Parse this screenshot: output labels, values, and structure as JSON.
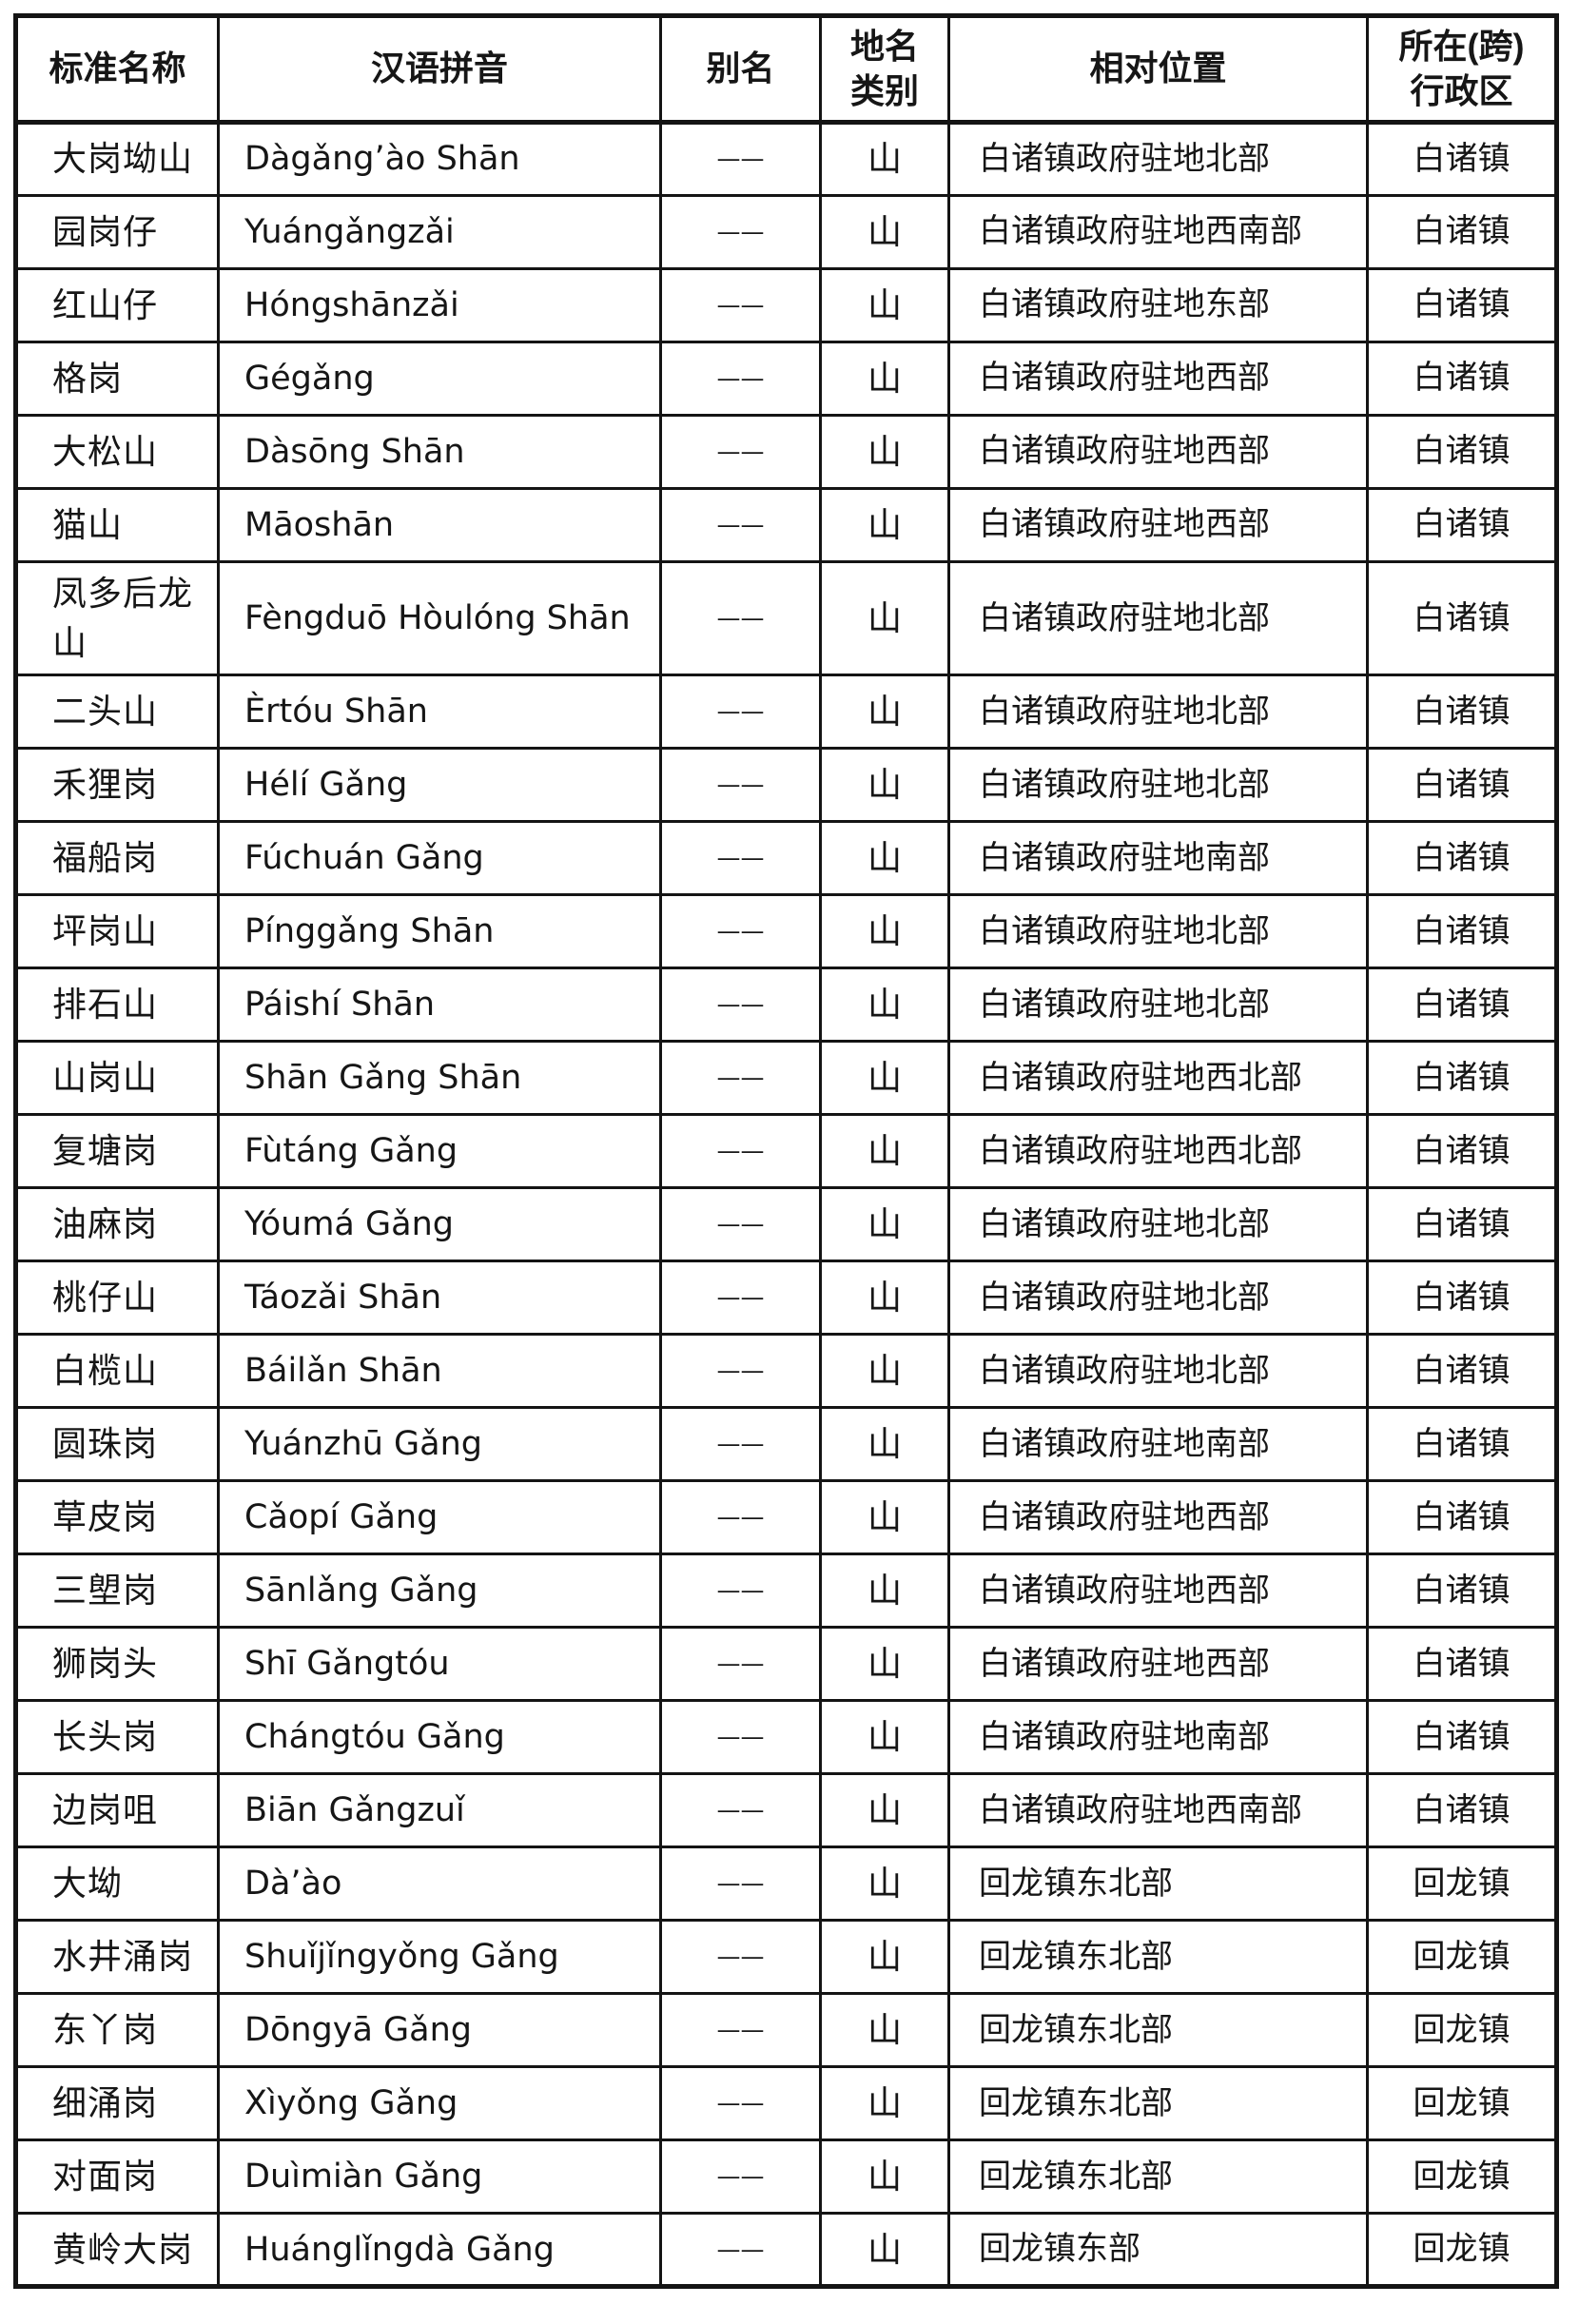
{
  "table": {
    "headers": [
      {
        "key": "name",
        "label": "标准名称"
      },
      {
        "key": "pinyin",
        "label": "汉语拼音"
      },
      {
        "key": "alias",
        "label": "别名"
      },
      {
        "key": "category",
        "label": "地名\n类别"
      },
      {
        "key": "position",
        "label": "相对位置"
      },
      {
        "key": "region",
        "label": "所在(跨)\n行政区"
      }
    ],
    "rows": [
      {
        "name": "大岗坳山",
        "pinyin": "Dàgǎng’ào Shān",
        "alias": "——",
        "category": "山",
        "position": "白诸镇政府驻地北部",
        "region": "白诸镇"
      },
      {
        "name": "园岗仔",
        "pinyin": "Yuángǎngzǎi",
        "alias": "——",
        "category": "山",
        "position": "白诸镇政府驻地西南部",
        "region": "白诸镇"
      },
      {
        "name": "红山仔",
        "pinyin": "Hóngshānzǎi",
        "alias": "——",
        "category": "山",
        "position": "白诸镇政府驻地东部",
        "region": "白诸镇"
      },
      {
        "name": "格岗",
        "pinyin": "Gégǎng",
        "alias": "——",
        "category": "山",
        "position": "白诸镇政府驻地西部",
        "region": "白诸镇"
      },
      {
        "name": "大松山",
        "pinyin": "Dàsōng Shān",
        "alias": "——",
        "category": "山",
        "position": "白诸镇政府驻地西部",
        "region": "白诸镇"
      },
      {
        "name": "猫山",
        "pinyin": "Māoshān",
        "alias": "——",
        "category": "山",
        "position": "白诸镇政府驻地西部",
        "region": "白诸镇"
      },
      {
        "name": "凤多后龙山",
        "pinyin": "Fèngduō Hòulóng Shān",
        "alias": "——",
        "category": "山",
        "position": "白诸镇政府驻地北部",
        "region": "白诸镇"
      },
      {
        "name": "二头山",
        "pinyin": "Èrtóu Shān",
        "alias": "——",
        "category": "山",
        "position": "白诸镇政府驻地北部",
        "region": "白诸镇"
      },
      {
        "name": "禾狸岗",
        "pinyin": "Hélí Gǎng",
        "alias": "——",
        "category": "山",
        "position": "白诸镇政府驻地北部",
        "region": "白诸镇"
      },
      {
        "name": "福船岗",
        "pinyin": "Fúchuán Gǎng",
        "alias": "——",
        "category": "山",
        "position": "白诸镇政府驻地南部",
        "region": "白诸镇"
      },
      {
        "name": "坪岗山",
        "pinyin": "Pínggǎng Shān",
        "alias": "——",
        "category": "山",
        "position": "白诸镇政府驻地北部",
        "region": "白诸镇"
      },
      {
        "name": "排石山",
        "pinyin": "Páishí Shān",
        "alias": "——",
        "category": "山",
        "position": "白诸镇政府驻地北部",
        "region": "白诸镇"
      },
      {
        "name": "山岗山",
        "pinyin": "Shān Gǎng Shān",
        "alias": "——",
        "category": "山",
        "position": "白诸镇政府驻地西北部",
        "region": "白诸镇"
      },
      {
        "name": "复塘岗",
        "pinyin": "Fùtáng Gǎng",
        "alias": "——",
        "category": "山",
        "position": "白诸镇政府驻地西北部",
        "region": "白诸镇"
      },
      {
        "name": "油麻岗",
        "pinyin": "Yóumá Gǎng",
        "alias": "——",
        "category": "山",
        "position": "白诸镇政府驻地北部",
        "region": "白诸镇"
      },
      {
        "name": "桃仔山",
        "pinyin": "Táozǎi Shān",
        "alias": "——",
        "category": "山",
        "position": "白诸镇政府驻地北部",
        "region": "白诸镇"
      },
      {
        "name": "白榄山",
        "pinyin": "Báilǎn Shān",
        "alias": "——",
        "category": "山",
        "position": "白诸镇政府驻地北部",
        "region": "白诸镇"
      },
      {
        "name": "圆珠岗",
        "pinyin": "Yuánzhū Gǎng",
        "alias": "——",
        "category": "山",
        "position": "白诸镇政府驻地南部",
        "region": "白诸镇"
      },
      {
        "name": "草皮岗",
        "pinyin": "Cǎopí Gǎng",
        "alias": "——",
        "category": "山",
        "position": "白诸镇政府驻地西部",
        "region": "白诸镇"
      },
      {
        "name": "三塱岗",
        "pinyin": "Sānlǎng Gǎng",
        "alias": "——",
        "category": "山",
        "position": "白诸镇政府驻地西部",
        "region": "白诸镇"
      },
      {
        "name": "狮岗头",
        "pinyin": "Shī Gǎngtóu",
        "alias": "——",
        "category": "山",
        "position": "白诸镇政府驻地西部",
        "region": "白诸镇"
      },
      {
        "name": "长头岗",
        "pinyin": "Chángtóu Gǎng",
        "alias": "——",
        "category": "山",
        "position": "白诸镇政府驻地南部",
        "region": "白诸镇"
      },
      {
        "name": "边岗咀",
        "pinyin": "Biān Gǎngzuǐ",
        "alias": "——",
        "category": "山",
        "position": "白诸镇政府驻地西南部",
        "region": "白诸镇"
      },
      {
        "name": "大坳",
        "pinyin": "Dà’ào",
        "alias": "——",
        "category": "山",
        "position": "回龙镇东北部",
        "region": "回龙镇"
      },
      {
        "name": "水井涌岗",
        "pinyin": "Shuǐjǐngyǒng Gǎng",
        "alias": "——",
        "category": "山",
        "position": "回龙镇东北部",
        "region": "回龙镇"
      },
      {
        "name": "东丫岗",
        "pinyin": "Dōngyā Gǎng",
        "alias": "——",
        "category": "山",
        "position": "回龙镇东北部",
        "region": "回龙镇"
      },
      {
        "name": "细涌岗",
        "pinyin": "Xìyǒng Gǎng",
        "alias": "——",
        "category": "山",
        "position": "回龙镇东北部",
        "region": "回龙镇"
      },
      {
        "name": "对面岗",
        "pinyin": "Duìmiàn Gǎng",
        "alias": "——",
        "category": "山",
        "position": "回龙镇东北部",
        "region": "回龙镇"
      },
      {
        "name": "黄岭大岗",
        "pinyin": "Huánglǐngdà Gǎng",
        "alias": "——",
        "category": "山",
        "position": "回龙镇东部",
        "region": "回龙镇"
      }
    ]
  }
}
